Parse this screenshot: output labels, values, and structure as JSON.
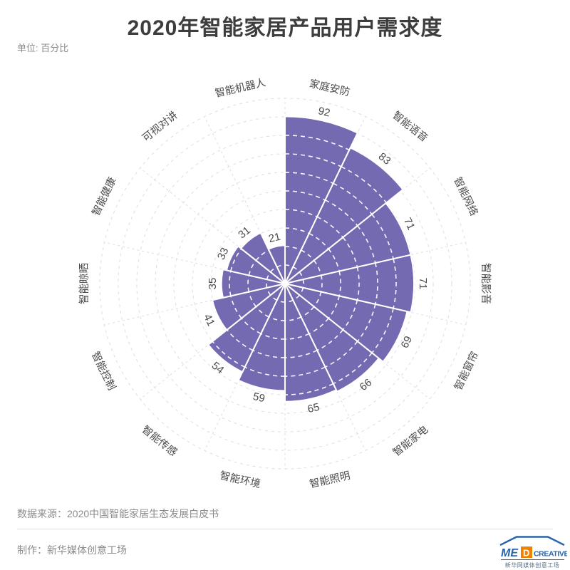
{
  "header": {
    "title": "2020年智能家居产品用户需求度",
    "unit_label": "单位: 百分比"
  },
  "chart_data": {
    "type": "bar",
    "subtype": "polar-rose",
    "title": "2020年智能家居产品用户需求度",
    "unit": "百分比",
    "categories": [
      "家庭安防",
      "智能语音",
      "智能网络",
      "智能影音",
      "智能窗帘",
      "智能家电",
      "智能照明",
      "智能环境",
      "智能传感",
      "智能控制",
      "智能晾晒",
      "智能健康",
      "可视对讲",
      "智能机器人"
    ],
    "values": [
      92,
      83,
      71,
      71,
      69,
      66,
      65,
      59,
      54,
      41,
      35,
      33,
      31,
      21
    ],
    "rlim": [
      0,
      100
    ],
    "grid_step": 10,
    "start_angle_deg": 0,
    "direction": "clockwise",
    "grid": "dashed circles and radial spokes",
    "legend": "none",
    "colors": {
      "wedge": "#746ab2",
      "grid_line": "#dddde3",
      "inner_grid_line": "#ffffff",
      "separator": "#ffffff",
      "label": "#4a4a4a"
    }
  },
  "footer": {
    "source_label": "数据来源：2020中国智能家居生态发展白皮书",
    "credit_label": "制作：新华媒体创意工场",
    "logo": {
      "me": "ME",
      "d": "D",
      "create": "CREATIVE",
      "subtext": "新华网媒体创意工场",
      "blue": "#2a64a9",
      "orange": "#ef8200",
      "subtext_color": "#5b7086"
    }
  }
}
